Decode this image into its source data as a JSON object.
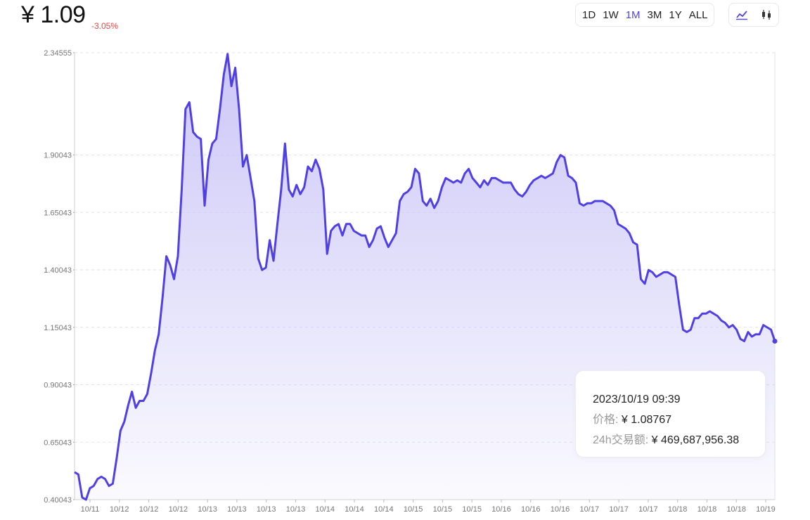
{
  "header": {
    "price": "¥ 1.09",
    "change": "-3.05%"
  },
  "ranges": [
    {
      "label": "1D",
      "active": false
    },
    {
      "label": "1W",
      "active": false
    },
    {
      "label": "1M",
      "active": true
    },
    {
      "label": "3M",
      "active": false
    },
    {
      "label": "1Y",
      "active": false
    },
    {
      "label": "ALL",
      "active": false
    }
  ],
  "chart_types": [
    {
      "icon": "line-chart-icon",
      "active": true
    },
    {
      "icon": "candlestick-chart-icon",
      "active": false
    }
  ],
  "tooltip": {
    "date": "2023/10/19 09:39",
    "price_label": "价格:",
    "price_value": "¥ 1.08767",
    "volume_label": "24h交易额:",
    "volume_value": "¥ 469,687,956.38"
  },
  "colors": {
    "line": "#4f3fe6",
    "fill": "#c9c4f7",
    "negative": "#ef4444",
    "accent": "#4f46e5"
  },
  "chart_data": {
    "type": "area",
    "yticks": [
      "2.34555",
      "1.90043",
      "1.65043",
      "1.40043",
      "1.15043",
      "0.90043",
      "0.65043",
      "0.40043"
    ],
    "ytick_values": [
      2.34555,
      1.90043,
      1.65043,
      1.40043,
      1.15043,
      0.90043,
      0.65043,
      0.40043
    ],
    "ylim": [
      0.40043,
      2.34555
    ],
    "xticks": [
      "10/11",
      "10/12",
      "10/12",
      "10/12",
      "10/13",
      "10/13",
      "10/13",
      "10/13",
      "10/14",
      "10/14",
      "10/14",
      "10/15",
      "10/15",
      "10/15",
      "10/16",
      "10/16",
      "10/16",
      "10/17",
      "10/17",
      "10/17",
      "10/18",
      "10/18",
      "10/18",
      "10/19"
    ],
    "grid": true,
    "series": [
      {
        "values": [
          0.52,
          0.51,
          0.41,
          0.4,
          0.45,
          0.46,
          0.49,
          0.5,
          0.49,
          0.46,
          0.47,
          0.58,
          0.7,
          0.74,
          0.81,
          0.87,
          0.8,
          0.83,
          0.83,
          0.86,
          0.95,
          1.05,
          1.12,
          1.28,
          1.46,
          1.42,
          1.36,
          1.46,
          1.75,
          2.1,
          2.13,
          2.0,
          1.98,
          1.97,
          1.68,
          1.88,
          1.95,
          1.97,
          2.1,
          2.25,
          2.34,
          2.2,
          2.28,
          2.1,
          1.85,
          1.9,
          1.8,
          1.7,
          1.45,
          1.4,
          1.41,
          1.53,
          1.44,
          1.6,
          1.75,
          1.95,
          1.75,
          1.72,
          1.77,
          1.73,
          1.76,
          1.85,
          1.83,
          1.88,
          1.84,
          1.75,
          1.47,
          1.57,
          1.59,
          1.6,
          1.55,
          1.6,
          1.6,
          1.57,
          1.56,
          1.55,
          1.55,
          1.5,
          1.53,
          1.58,
          1.59,
          1.54,
          1.5,
          1.53,
          1.56,
          1.7,
          1.73,
          1.74,
          1.76,
          1.84,
          1.82,
          1.7,
          1.68,
          1.71,
          1.67,
          1.7,
          1.76,
          1.8,
          1.79,
          1.78,
          1.79,
          1.78,
          1.82,
          1.84,
          1.8,
          1.78,
          1.76,
          1.79,
          1.77,
          1.8,
          1.8,
          1.79,
          1.78,
          1.78,
          1.78,
          1.75,
          1.73,
          1.72,
          1.74,
          1.77,
          1.79,
          1.8,
          1.81,
          1.8,
          1.81,
          1.82,
          1.87,
          1.9,
          1.89,
          1.81,
          1.8,
          1.78,
          1.69,
          1.68,
          1.69,
          1.69,
          1.7,
          1.7,
          1.7,
          1.69,
          1.68,
          1.66,
          1.6,
          1.59,
          1.58,
          1.56,
          1.52,
          1.51,
          1.36,
          1.34,
          1.4,
          1.39,
          1.37,
          1.38,
          1.39,
          1.39,
          1.38,
          1.37,
          1.25,
          1.14,
          1.13,
          1.14,
          1.19,
          1.19,
          1.21,
          1.21,
          1.22,
          1.21,
          1.2,
          1.18,
          1.17,
          1.15,
          1.16,
          1.14,
          1.1,
          1.09,
          1.13,
          1.11,
          1.12,
          1.12,
          1.16,
          1.15,
          1.14,
          1.09
        ]
      }
    ]
  }
}
